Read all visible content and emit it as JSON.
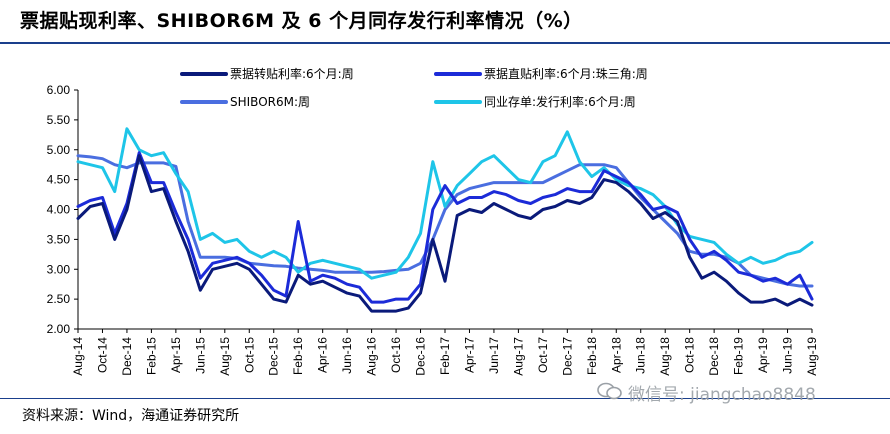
{
  "header": {
    "title": "票据贴现利率、SHIBOR6M 及 6 个月同存发行利率情况（%）"
  },
  "footer": {
    "source": "资料来源：Wind，海通证券研究所",
    "watermark": "微信号: jiangchao8848"
  },
  "chart_data": {
    "type": "line",
    "ylim": [
      2.0,
      6.0
    ],
    "yticks": [
      "6.00",
      "5.50",
      "5.00",
      "4.50",
      "4.00",
      "3.50",
      "3.00",
      "2.50",
      "2.00"
    ],
    "xlim": [
      "2014-08",
      "2019-08"
    ],
    "xticks": [
      "Aug-14",
      "Oct-14",
      "Dec-14",
      "Feb-15",
      "Apr-15",
      "Jun-15",
      "Aug-15",
      "Oct-15",
      "Dec-15",
      "Feb-16",
      "Apr-16",
      "Jun-16",
      "Aug-16",
      "Oct-16",
      "Dec-16",
      "Feb-17",
      "Apr-17",
      "Jun-17",
      "Aug-17",
      "Oct-17",
      "Dec-17",
      "Feb-18",
      "Apr-18",
      "Jun-18",
      "Aug-18",
      "Oct-18",
      "Dec-18",
      "Feb-19",
      "Apr-19",
      "Jun-19",
      "Aug-19"
    ],
    "grid": false,
    "legend_position": "top",
    "series": [
      {
        "name": "票据转贴利率:6个月:周",
        "color": "#0a1a7a",
        "x": [
          "2014-08",
          "2014-09",
          "2014-10",
          "2014-11",
          "2014-12",
          "2015-01",
          "2015-02",
          "2015-03",
          "2015-04",
          "2015-05",
          "2015-06",
          "2015-07",
          "2015-08",
          "2015-09",
          "2015-10",
          "2015-11",
          "2015-12",
          "2016-01",
          "2016-02",
          "2016-03",
          "2016-04",
          "2016-05",
          "2016-06",
          "2016-07",
          "2016-08",
          "2016-09",
          "2016-10",
          "2016-11",
          "2016-12",
          "2017-01",
          "2017-02",
          "2017-03",
          "2017-04",
          "2017-05",
          "2017-06",
          "2017-07",
          "2017-08",
          "2017-09",
          "2017-10",
          "2017-11",
          "2017-12",
          "2018-01",
          "2018-02",
          "2018-03",
          "2018-04",
          "2018-05",
          "2018-06",
          "2018-07",
          "2018-08",
          "2018-09",
          "2018-10",
          "2018-11",
          "2018-12",
          "2019-01",
          "2019-02",
          "2019-03",
          "2019-04",
          "2019-05",
          "2019-06",
          "2019-07",
          "2019-08"
        ],
        "values": [
          3.85,
          4.05,
          4.1,
          3.5,
          4.0,
          4.9,
          4.3,
          4.35,
          3.8,
          3.3,
          2.65,
          3.0,
          3.05,
          3.1,
          3.0,
          2.75,
          2.5,
          2.45,
          2.9,
          2.75,
          2.8,
          2.7,
          2.6,
          2.55,
          2.3,
          2.3,
          2.3,
          2.35,
          2.6,
          3.5,
          2.8,
          3.9,
          4.0,
          3.95,
          4.1,
          4.0,
          3.9,
          3.85,
          4.0,
          4.05,
          4.15,
          4.1,
          4.2,
          4.5,
          4.45,
          4.3,
          4.1,
          3.85,
          3.95,
          3.8,
          3.2,
          2.85,
          2.95,
          2.8,
          2.6,
          2.45,
          2.45,
          2.5,
          2.4,
          2.5,
          2.4
        ]
      },
      {
        "name": "票据直贴利率:6个月:珠三角:周",
        "color": "#1c2bd8",
        "x": [
          "2014-08",
          "2014-09",
          "2014-10",
          "2014-11",
          "2014-12",
          "2015-01",
          "2015-02",
          "2015-03",
          "2015-04",
          "2015-05",
          "2015-06",
          "2015-07",
          "2015-08",
          "2015-09",
          "2015-10",
          "2015-11",
          "2015-12",
          "2016-01",
          "2016-02",
          "2016-03",
          "2016-04",
          "2016-05",
          "2016-06",
          "2016-07",
          "2016-08",
          "2016-09",
          "2016-10",
          "2016-11",
          "2016-12",
          "2017-01",
          "2017-02",
          "2017-03",
          "2017-04",
          "2017-05",
          "2017-06",
          "2017-07",
          "2017-08",
          "2017-09",
          "2017-10",
          "2017-11",
          "2017-12",
          "2018-01",
          "2018-02",
          "2018-03",
          "2018-04",
          "2018-05",
          "2018-06",
          "2018-07",
          "2018-08",
          "2018-09",
          "2018-10",
          "2018-11",
          "2018-12",
          "2019-01",
          "2019-02",
          "2019-03",
          "2019-04",
          "2019-05",
          "2019-06",
          "2019-07",
          "2019-08"
        ],
        "values": [
          4.05,
          4.15,
          4.2,
          3.6,
          4.1,
          4.95,
          4.45,
          4.45,
          3.95,
          3.5,
          2.85,
          3.1,
          3.15,
          3.2,
          3.1,
          2.9,
          2.65,
          2.55,
          3.8,
          2.8,
          2.9,
          2.85,
          2.75,
          2.7,
          2.45,
          2.45,
          2.5,
          2.5,
          2.75,
          4.0,
          4.4,
          4.1,
          4.2,
          4.2,
          4.3,
          4.25,
          4.15,
          4.1,
          4.2,
          4.25,
          4.35,
          4.3,
          4.3,
          4.65,
          4.55,
          4.45,
          4.25,
          4.0,
          4.05,
          3.95,
          3.5,
          3.2,
          3.3,
          3.15,
          2.95,
          2.9,
          2.8,
          2.85,
          2.75,
          2.9,
          2.5
        ]
      },
      {
        "name": "SHIBOR6M:周",
        "color": "#4a6ee0",
        "x": [
          "2014-08",
          "2014-09",
          "2014-10",
          "2014-11",
          "2014-12",
          "2015-01",
          "2015-02",
          "2015-03",
          "2015-04",
          "2015-05",
          "2015-06",
          "2015-07",
          "2015-08",
          "2015-09",
          "2015-10",
          "2015-11",
          "2015-12",
          "2016-01",
          "2016-02",
          "2016-03",
          "2016-04",
          "2016-05",
          "2016-06",
          "2016-07",
          "2016-08",
          "2016-09",
          "2016-10",
          "2016-11",
          "2016-12",
          "2017-01",
          "2017-02",
          "2017-03",
          "2017-04",
          "2017-05",
          "2017-06",
          "2017-07",
          "2017-08",
          "2017-09",
          "2017-10",
          "2017-11",
          "2017-12",
          "2018-01",
          "2018-02",
          "2018-03",
          "2018-04",
          "2018-05",
          "2018-06",
          "2018-07",
          "2018-08",
          "2018-09",
          "2018-10",
          "2018-11",
          "2018-12",
          "2019-01",
          "2019-02",
          "2019-03",
          "2019-04",
          "2019-05",
          "2019-06",
          "2019-07",
          "2019-08"
        ],
        "values": [
          4.9,
          4.88,
          4.85,
          4.75,
          4.7,
          4.78,
          4.78,
          4.78,
          4.72,
          3.8,
          3.2,
          3.2,
          3.2,
          3.18,
          3.1,
          3.08,
          3.06,
          3.05,
          3.02,
          3.0,
          2.98,
          2.95,
          2.95,
          2.95,
          2.95,
          2.96,
          2.98,
          3.0,
          3.1,
          3.5,
          4.0,
          4.25,
          4.35,
          4.4,
          4.45,
          4.45,
          4.45,
          4.45,
          4.45,
          4.55,
          4.65,
          4.75,
          4.75,
          4.75,
          4.7,
          4.45,
          4.2,
          4.0,
          3.8,
          3.6,
          3.3,
          3.25,
          3.25,
          3.2,
          3.1,
          2.9,
          2.85,
          2.8,
          2.75,
          2.72,
          2.72
        ]
      },
      {
        "name": "同业存单:发行利率:6个月:周",
        "color": "#1ec5e8",
        "x": [
          "2014-08",
          "2014-09",
          "2014-10",
          "2014-11",
          "2014-12",
          "2015-01",
          "2015-02",
          "2015-03",
          "2015-04",
          "2015-05",
          "2015-06",
          "2015-07",
          "2015-08",
          "2015-09",
          "2015-10",
          "2015-11",
          "2015-12",
          "2016-01",
          "2016-02",
          "2016-03",
          "2016-04",
          "2016-05",
          "2016-06",
          "2016-07",
          "2016-08",
          "2016-09",
          "2016-10",
          "2016-11",
          "2016-12",
          "2017-01",
          "2017-02",
          "2017-03",
          "2017-04",
          "2017-05",
          "2017-06",
          "2017-07",
          "2017-08",
          "2017-09",
          "2017-10",
          "2017-11",
          "2017-12",
          "2018-01",
          "2018-02",
          "2018-03",
          "2018-04",
          "2018-05",
          "2018-06",
          "2018-07",
          "2018-08",
          "2018-09",
          "2018-10",
          "2018-11",
          "2018-12",
          "2019-01",
          "2019-02",
          "2019-03",
          "2019-04",
          "2019-05",
          "2019-06",
          "2019-07",
          "2019-08"
        ],
        "values": [
          4.8,
          4.75,
          4.7,
          4.3,
          5.35,
          5.0,
          4.9,
          4.95,
          4.6,
          4.3,
          3.5,
          3.6,
          3.45,
          3.5,
          3.3,
          3.2,
          3.3,
          3.2,
          2.95,
          3.1,
          3.15,
          3.1,
          3.05,
          3.0,
          2.85,
          2.9,
          2.95,
          3.2,
          3.6,
          4.8,
          4.05,
          4.4,
          4.6,
          4.8,
          4.9,
          4.7,
          4.5,
          4.45,
          4.8,
          4.9,
          5.3,
          4.8,
          4.55,
          4.7,
          4.5,
          4.4,
          4.35,
          4.25,
          4.05,
          3.75,
          3.55,
          3.5,
          3.45,
          3.25,
          3.1,
          3.2,
          3.1,
          3.15,
          3.25,
          3.3,
          3.45
        ]
      }
    ]
  }
}
